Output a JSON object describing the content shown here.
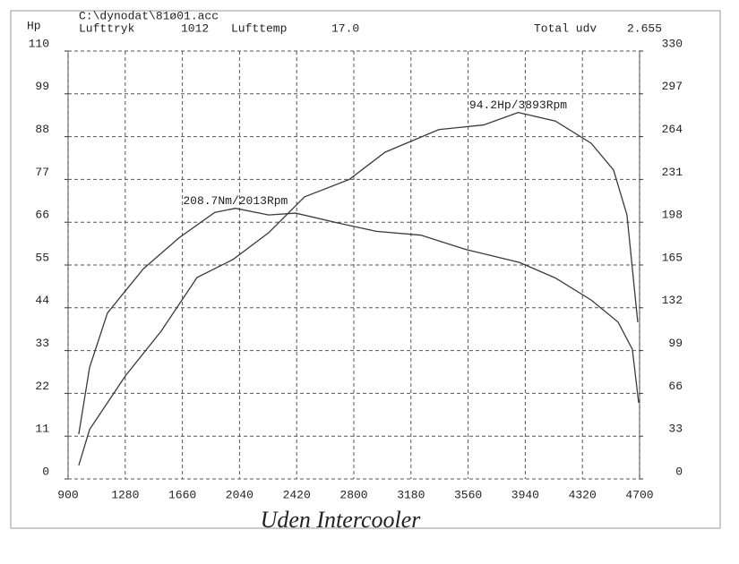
{
  "chart_data": {
    "type": "line",
    "header": {
      "file": "C:\\dynodat\\81ø01.acc",
      "pressure_label": "Lufttryk",
      "pressure": "1012",
      "temp_label": "Lufttemp",
      "temp": "17.0",
      "total_label": "Total udv",
      "total": "2.655"
    },
    "ylabel": "Hp",
    "caption": "Uden Intercooler",
    "xlim": [
      900,
      4700
    ],
    "xticks": [
      900,
      1280,
      1660,
      2040,
      2420,
      2800,
      3180,
      3560,
      3940,
      4320,
      4700
    ],
    "ylim": [
      0,
      110
    ],
    "yticks": [
      0,
      11,
      22,
      33,
      44,
      55,
      66,
      77,
      88,
      99,
      110
    ],
    "y2lim": [
      0,
      330
    ],
    "y2ticks": [
      0,
      33,
      66,
      99,
      132,
      165,
      198,
      231,
      264,
      297,
      330
    ],
    "grid": true,
    "series": [
      {
        "name": "Hp",
        "color": "#3a3a3a",
        "annotation": "94.2Hp/3893Rpm",
        "x": [
          971,
          1043,
          1281,
          1519,
          1758,
          1996,
          2234,
          2472,
          2770,
          3008,
          3365,
          3663,
          3893,
          4140,
          4378,
          4527,
          4616,
          4688
        ],
        "values": [
          3.5,
          12.7,
          26.5,
          38,
          51.8,
          56.4,
          63.3,
          72.5,
          77,
          84,
          89.8,
          91,
          94.2,
          92,
          86.3,
          79.4,
          67.9,
          40.3
        ]
      },
      {
        "name": "Nm",
        "color": "#3a3a3a",
        "axis": "y2",
        "annotation": "208.7Nm/2013Rpm",
        "x": [
          971,
          1043,
          1162,
          1400,
          1638,
          1876,
          2013,
          2234,
          2413,
          2710,
          2949,
          3246,
          3544,
          3901,
          4140,
          4378,
          4557,
          4652,
          4694
        ],
        "values": [
          34.5,
          86,
          128,
          162,
          186,
          205.6,
          208.7,
          203.6,
          205,
          197,
          191,
          188,
          177,
          167,
          155,
          138,
          121,
          100,
          58.7
        ]
      }
    ]
  }
}
